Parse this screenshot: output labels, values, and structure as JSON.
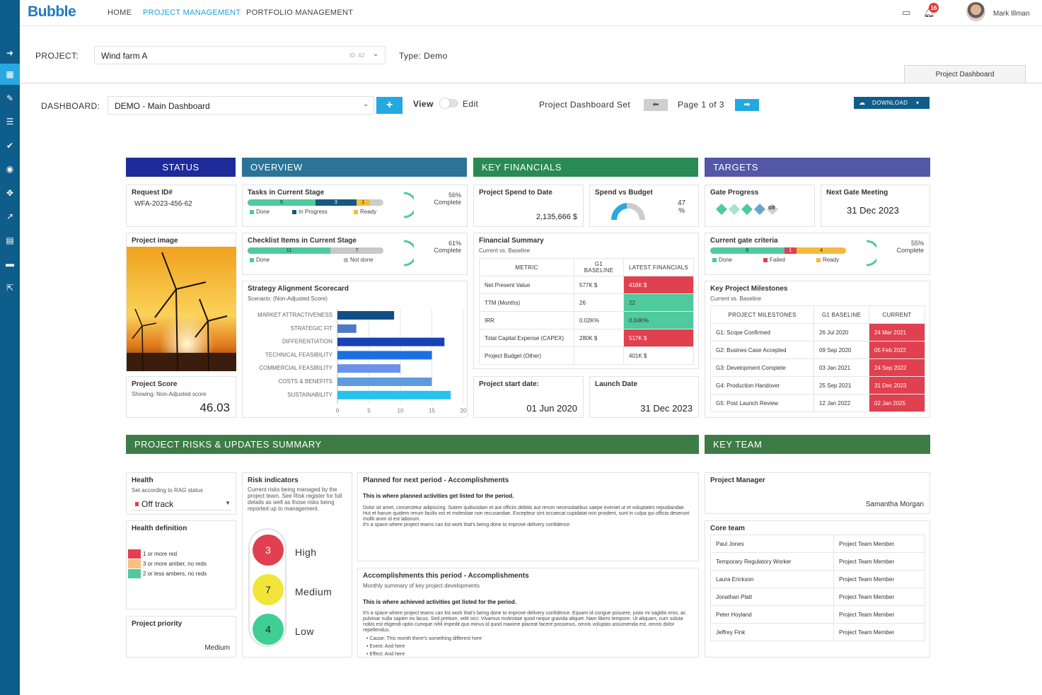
{
  "app": {
    "logo": "Bubble",
    "nav": [
      "HOME",
      "PROJECT MANAGEMENT",
      "PORTFOLIO MANAGEMENT"
    ],
    "notifications": "16",
    "user": "Mark Illman"
  },
  "project": {
    "label": "PROJECT:",
    "value": "Wind farm A",
    "id": "ID: 62",
    "type": "Type: Demo"
  },
  "tab": "Project Dashboard",
  "dashboard": {
    "label": "DASHBOARD:",
    "value": "DEMO - Main Dashboard",
    "plus": "+",
    "view": "View",
    "edit": "Edit",
    "set_label": "Project Dashboard Set",
    "page": "Page 1 of 3",
    "download": "DOWNLOAD"
  },
  "headers": {
    "status": "STATUS",
    "overview": "OVERVIEW",
    "financials": "KEY FINANCIALS",
    "targets": "TARGETS",
    "risks": "PROJECT RISKS & UPDATES SUMMARY",
    "team": "KEY TEAM"
  },
  "colors": {
    "status": "#1f2a9b",
    "overview": "#2c7496",
    "financials": "#2a8a55",
    "targets": "#5456a8",
    "risks": "#3d7c47",
    "team": "#3d7c47",
    "done": "#4fc99e",
    "progress": "#135b83",
    "ready": "#f6b93b",
    "failed": "#e0404f"
  },
  "request": {
    "title": "Request ID#",
    "value": "WFA-2023-456-62"
  },
  "image": {
    "title": "Project image"
  },
  "score": {
    "title": "Project Score",
    "sub": "Showing: Non-Adjusted score",
    "value": "46.03"
  },
  "tasks": {
    "title": "Tasks in Current Stage",
    "done": "5",
    "in_progress": "3",
    "ready": "1",
    "done_fraction": 0.5,
    "in_progress_fraction": 0.3,
    "ready_fraction": 0.1,
    "pct": "56%",
    "complete": "Complete",
    "l_done": "Done",
    "l_progress": "In Progress",
    "l_ready": "Ready"
  },
  "checklist": {
    "title": "Checklist Items in Current Stage",
    "done": "11",
    "not_done": "7",
    "done_fraction": 0.61,
    "pct": "61%",
    "complete": "Complete",
    "l_done": "Done",
    "l_not": "Not done"
  },
  "scorecard": {
    "title": "Strategy Alignment Scorecard",
    "sub": "Scenario: (Non-Adjusted Score)"
  },
  "chart_data": {
    "type": "bar",
    "orientation": "horizontal",
    "categories": [
      "MARKET ATTRACTIVENESS",
      "STRATEGIC FIT",
      "DIFFERENTIATION",
      "TECHNICAL FEASIBILITY",
      "COMMERCIAL FEASIBILITY",
      "COSTS & BENEFITS",
      "SUSTAINABILITY"
    ],
    "values": [
      9,
      3,
      17,
      15,
      10,
      15,
      18
    ],
    "colors": [
      "#114e86",
      "#4c7bc4",
      "#1543b3",
      "#1b6fe1",
      "#6c91ea",
      "#5d9bde",
      "#27c3ec"
    ],
    "xticks": [
      "0",
      "5",
      "10",
      "15",
      "20"
    ],
    "xlim": [
      0,
      20
    ],
    "grid": true
  },
  "spend": {
    "title": "Project Spend to Date",
    "value": "2,135,666 $"
  },
  "svb": {
    "title": "Spend vs Budget",
    "value": "47",
    "unit": "%"
  },
  "fin": {
    "title": "Financial Summary",
    "sub": "Current vs. Baseline",
    "headers": [
      "METRIC",
      "G1 BASELINE",
      "LATEST FINANCIALS"
    ],
    "rows": [
      [
        "Net Present Value",
        "577K $",
        "416K $"
      ],
      [
        "TTM (Months)",
        "26",
        "22"
      ],
      [
        "IRR",
        "0.02K%",
        "0.04K%"
      ],
      [
        "Total Capital Expense (CAPEX)",
        "280K $",
        "517K $"
      ],
      [
        "Project Budget (Other)",
        "",
        "401K $"
      ]
    ]
  },
  "start": {
    "title": "Project start date:",
    "value": "01 Jun 2020"
  },
  "launch": {
    "title": "Launch Date",
    "value": "31 Dec 2023"
  },
  "gate": {
    "title": "Gate Progress",
    "current": "G5"
  },
  "meeting": {
    "title": "Next Gate Meeting",
    "value": "31 Dec 2023"
  },
  "criteria": {
    "title": "Current gate criteria",
    "done": "6",
    "failed": "1",
    "ready": "4",
    "pct": "55%",
    "complete": "Complete",
    "l_done": "Done",
    "l_failed": "Failed",
    "l_ready": "Ready"
  },
  "milestones": {
    "title": "Key Project Milestones",
    "sub": "Current vs. Baseline",
    "headers": [
      "PROJECT MILESTONES",
      "G1 BASELINE",
      "CURRENT"
    ],
    "rows": [
      [
        "G1: Scope Confirmed",
        "26 Jul 2020",
        "24 Mar 2021"
      ],
      [
        "G2: Busines Case Accepted",
        "09 Sep 2020",
        "05 Feb 2022"
      ],
      [
        "G3: Development Complete",
        "03 Jan 2021",
        "24 Sep 2022"
      ],
      [
        "G4: Production Handover",
        "25 Sep 2021",
        "31 Dec 2023"
      ],
      [
        "G5: Post Launch Review",
        "12 Jan 2022",
        "02 Jan 2025"
      ]
    ]
  },
  "health": {
    "title": "Health",
    "sub": "Set according to RAG status",
    "value": "Off track"
  },
  "health_def": {
    "title": "Health definition",
    "items": [
      "1 or more red",
      "3 or more amber, no reds",
      "2 or less ambers, no reds"
    ]
  },
  "priority": {
    "title": "Project priority",
    "value": "Medium"
  },
  "risk": {
    "title": "Risk indicators",
    "desc": "Current risks being managed by the project team. See Risk register for full details as well as those risks being reported up to management.",
    "high": "3",
    "high_l": "High",
    "medium": "7",
    "medium_l": "Medium",
    "low": "4",
    "low_l": "Low"
  },
  "planned": {
    "title": "Planned for next period - Accomplishments",
    "lead": "This is where planned activities get listed for the period.",
    "body": "Dolor sit amet, consectetur adipiscing. Sutem quibusdam et aut officiis debitis aut rerum necessitatibus saepe eveniet ut et voluptates repudiandae. Hut et harum quidem rerum facilis est et molestiae non recusandae. Excepteur sint occaecat cupidatat non proident, sunt in culpa qui officia deserunt mollit anim id est laborum.",
    "body2": "It's a space where project teams can list work that's being done to improve delivery confidence"
  },
  "accomp": {
    "title": "Accomplishments this period - Accomplishments",
    "sub": "Monthly summary of key project developments",
    "lead": "This is where achieved activities get listed for the period.",
    "body": "It's a space where project teams can list work that's being done to improve delivery confidence. Equam id congue posuere, justo mi sagittis eros, ac pulvinar nulla sapien eu lacus. Sed pretium, velit orci. Vivamus molestiae quod neque gravida aliquet. Nam libero tempore. Ut aliquam, cum soluta nobis est eligendi optio cumque nihil impedit quo minus id quod maxime placeat facere possimus, omnis voluptas assumenda est, omnis dolor repellendus.",
    "bullets": [
      "Cause: This month there's something different here",
      "Event: And here",
      "Effect: And here"
    ]
  },
  "pm": {
    "title": "Project Manager",
    "value": "Samantha Morgan"
  },
  "core": {
    "title": "Core team",
    "rows": [
      [
        "Paul Jones",
        "Project Team Member"
      ],
      [
        "Temporary Regulatory Worker",
        "Project Team Member"
      ],
      [
        "Laura Erickson",
        "Project Team Member"
      ],
      [
        "Jonathan Platt",
        "Project Team Member"
      ],
      [
        "Peter Hoyland",
        "Project Team Member"
      ],
      [
        "Jeffrey Fink",
        "Project Team Member"
      ]
    ]
  }
}
